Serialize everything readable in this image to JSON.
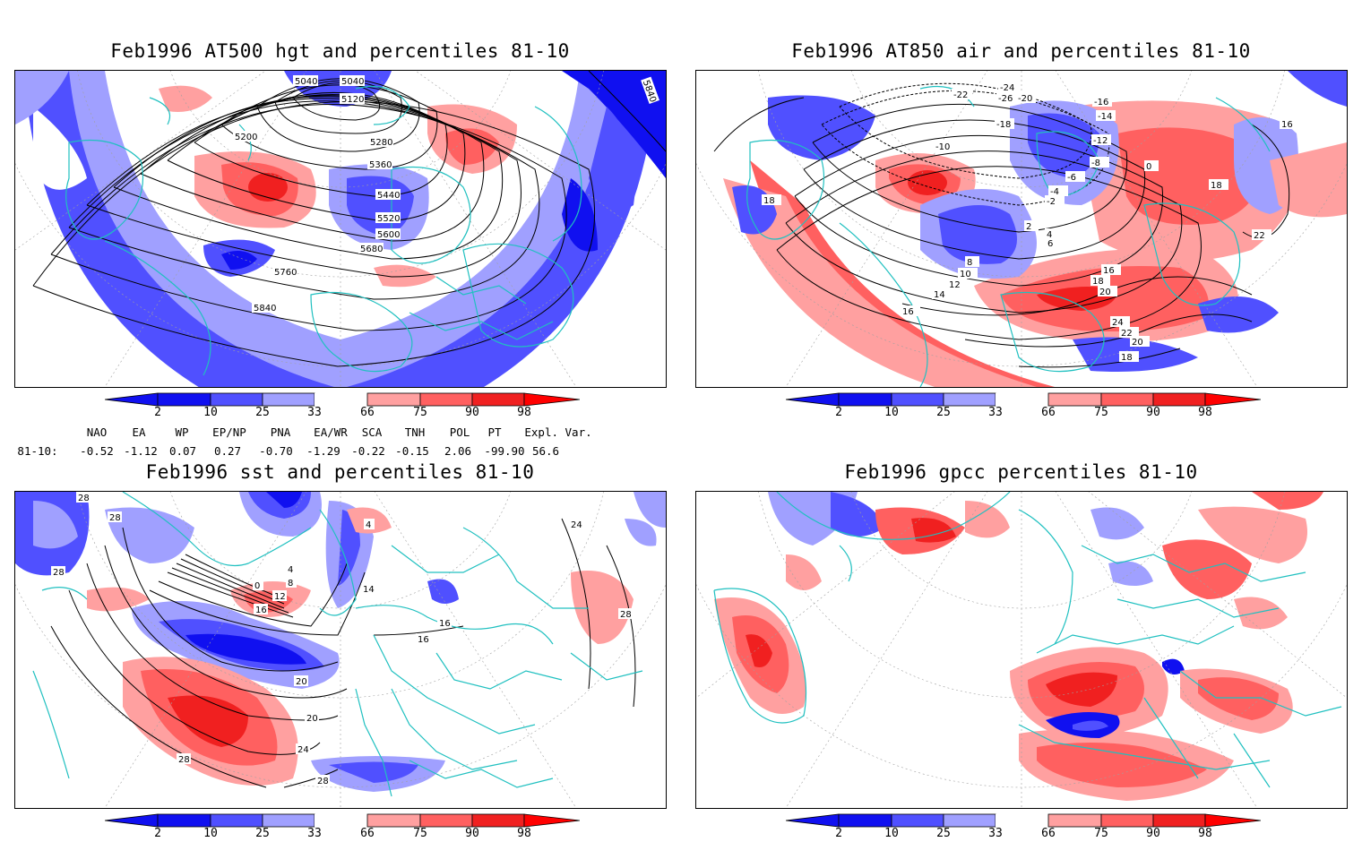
{
  "panels": [
    {
      "title": "Feb1996 AT500 hgt and percentiles 81-10",
      "contour_labels": [
        "5040",
        "5040",
        "5120",
        "5200",
        "5280",
        "5360",
        "5440",
        "5520",
        "5600",
        "5680",
        "5760",
        "5840",
        "5840"
      ]
    },
    {
      "title": "Feb1996 AT850 air and percentiles 81-10",
      "contour_labels": [
        "-22",
        "-24",
        "-26",
        "-20",
        "-18",
        "-16",
        "-14",
        "-12",
        "-10",
        "-8",
        "-6",
        "-4",
        "-2",
        "0",
        "2",
        "4",
        "6",
        "8",
        "10",
        "12",
        "14",
        "16",
        "16",
        "16",
        "18",
        "18",
        "18",
        "20",
        "20",
        "22",
        "22",
        "24",
        "18"
      ]
    },
    {
      "title": "Feb1996 sst and percentiles 81-10",
      "contour_labels": [
        "28",
        "28",
        "0",
        "4",
        "8",
        "12",
        "16",
        "16",
        "16",
        "20",
        "20",
        "24",
        "28",
        "28",
        "28",
        "24",
        "28",
        "14",
        "4"
      ]
    },
    {
      "title": "Feb1996 gpcc percentiles 81-10",
      "contour_labels": []
    }
  ],
  "colorbar": {
    "labels": [
      "2",
      "10",
      "25",
      "33",
      "66",
      "75",
      "90",
      "98"
    ],
    "colors": {
      "dark_blue": "#1010f0",
      "mid_blue": "#5050ff",
      "light_blue": "#a0a0ff",
      "white": "#ffffff",
      "light_red": "#ffa0a0",
      "mid_red": "#ff6060",
      "dark_red": "#f02020",
      "red_tip": "#ff0000"
    }
  },
  "indices": {
    "headers": [
      "NAO",
      "EA",
      "WP",
      "EP/NP",
      "PNA",
      "EA/WR",
      "SCA",
      "TNH",
      "POL",
      "PT",
      "Expl. Var."
    ],
    "row_label": "81-10:",
    "values": [
      "-0.52",
      "-1.12",
      "0.07",
      "0.27",
      "-0.70",
      "-1.29",
      "-0.22",
      "-0.15",
      "2.06",
      "-99.90",
      "56.6"
    ]
  },
  "map_colors": {
    "coastline": "#20c0c0",
    "contour": "#000000",
    "grid": "#a0a0a0"
  }
}
